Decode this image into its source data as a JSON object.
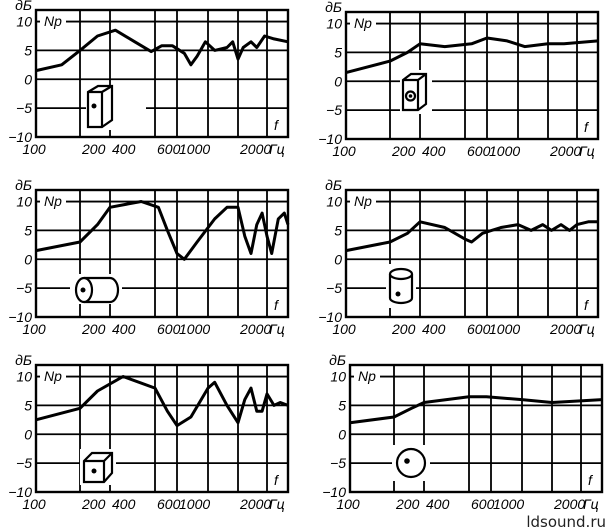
{
  "watermark": "ldsound.ru",
  "axis": {
    "y_unit": "дБ",
    "y_name": "Np",
    "x_name": "f",
    "x_unit": "Гц",
    "y_ticks": [
      10,
      5,
      0,
      -5,
      -10
    ],
    "x_ticks": [
      100,
      200,
      400,
      600,
      1000,
      2000
    ],
    "x_grid": [
      100,
      200,
      400,
      600,
      1000,
      1500,
      2000,
      3000,
      4000
    ]
  },
  "chart_data": [
    {
      "type": "line",
      "title": "",
      "enclosure": "box-side-mounted",
      "xlabel": "f, Гц",
      "ylabel": "Np, дБ",
      "ylim": [
        -10,
        12
      ],
      "xlim": [
        100,
        4000
      ],
      "grid": true,
      "x": [
        100,
        150,
        200,
        300,
        420,
        500,
        580,
        700,
        900,
        1100,
        1200,
        1300,
        1450,
        1600,
        1800,
        1900,
        2000,
        2150,
        2400,
        2600,
        2900,
        3300,
        4000
      ],
      "y": [
        1.5,
        2.5,
        5,
        7.5,
        8.5,
        6.5,
        4.8,
        5.8,
        5.8,
        4.5,
        2.5,
        4,
        6.5,
        5,
        5.5,
        6.5,
        3.5,
        5.5,
        6.5,
        5.5,
        7.5,
        7,
        6.5
      ]
    },
    {
      "type": "line",
      "title": "",
      "enclosure": "box-front-mounted",
      "xlabel": "f, Гц",
      "ylabel": "Np, дБ",
      "ylim": [
        -10,
        12
      ],
      "xlim": [
        100,
        4000
      ],
      "grid": true,
      "x": [
        100,
        200,
        300,
        400,
        500,
        700,
        1000,
        1300,
        1600,
        2000,
        2500,
        4000
      ],
      "y": [
        1.5,
        3.5,
        5,
        6.5,
        6,
        6.5,
        7.5,
        7,
        6,
        6.5,
        6.5,
        7
      ]
    },
    {
      "type": "line",
      "title": "",
      "enclosure": "cylinder-horizontal",
      "xlabel": "f, Гц",
      "ylabel": "Np, дБ",
      "ylim": [
        -10,
        12
      ],
      "xlim": [
        100,
        4000
      ],
      "grid": true,
      "x": [
        100,
        200,
        300,
        400,
        530,
        650,
        800,
        1000,
        1100,
        1300,
        1600,
        1800,
        2000,
        2200,
        2400,
        2600,
        2800,
        3000,
        3200,
        3500,
        3800,
        4000
      ],
      "y": [
        1.5,
        3,
        6,
        9,
        10,
        9,
        5,
        1,
        0,
        3,
        7,
        9,
        9,
        4,
        1,
        6,
        8,
        4,
        1,
        7,
        8,
        6
      ]
    },
    {
      "type": "line",
      "title": "",
      "enclosure": "cylinder-vertical",
      "xlabel": "f, Гц",
      "ylabel": "Np, дБ",
      "ylim": [
        -10,
        12
      ],
      "xlim": [
        100,
        4000
      ],
      "grid": true,
      "x": [
        100,
        200,
        300,
        400,
        500,
        600,
        700,
        900,
        1200,
        1500,
        1700,
        1900,
        2100,
        2400,
        2700,
        3000,
        3500,
        4000
      ],
      "y": [
        1.5,
        3,
        4.5,
        6.5,
        5.5,
        3.5,
        3,
        4.5,
        5.5,
        6,
        5,
        6,
        5,
        6,
        5,
        6,
        6.5,
        6.5
      ]
    },
    {
      "type": "line",
      "title": "",
      "enclosure": "cube",
      "xlabel": "f, Гц",
      "ylabel": "Np, дБ",
      "ylim": [
        -10,
        12
      ],
      "xlim": [
        100,
        4000
      ],
      "grid": true,
      "x": [
        100,
        200,
        300,
        450,
        600,
        800,
        1000,
        1200,
        1500,
        1600,
        1800,
        2000,
        2200,
        2400,
        2600,
        2800,
        3000,
        3300,
        3600,
        4000
      ],
      "y": [
        2.5,
        4.5,
        7.5,
        10,
        8,
        4,
        1.5,
        3,
        8,
        9,
        5,
        2,
        6,
        8,
        4,
        4,
        7,
        5,
        5.5,
        5
      ]
    },
    {
      "type": "line",
      "title": "",
      "enclosure": "sphere",
      "xlabel": "f, Гц",
      "ylabel": "Np, дБ",
      "ylim": [
        -10,
        12
      ],
      "xlim": [
        100,
        4000
      ],
      "grid": true,
      "x": [
        100,
        200,
        300,
        400,
        600,
        900,
        1500,
        2000,
        4000
      ],
      "y": [
        2,
        3,
        4.5,
        5.5,
        6.5,
        6.5,
        6,
        5.5,
        6
      ]
    }
  ]
}
